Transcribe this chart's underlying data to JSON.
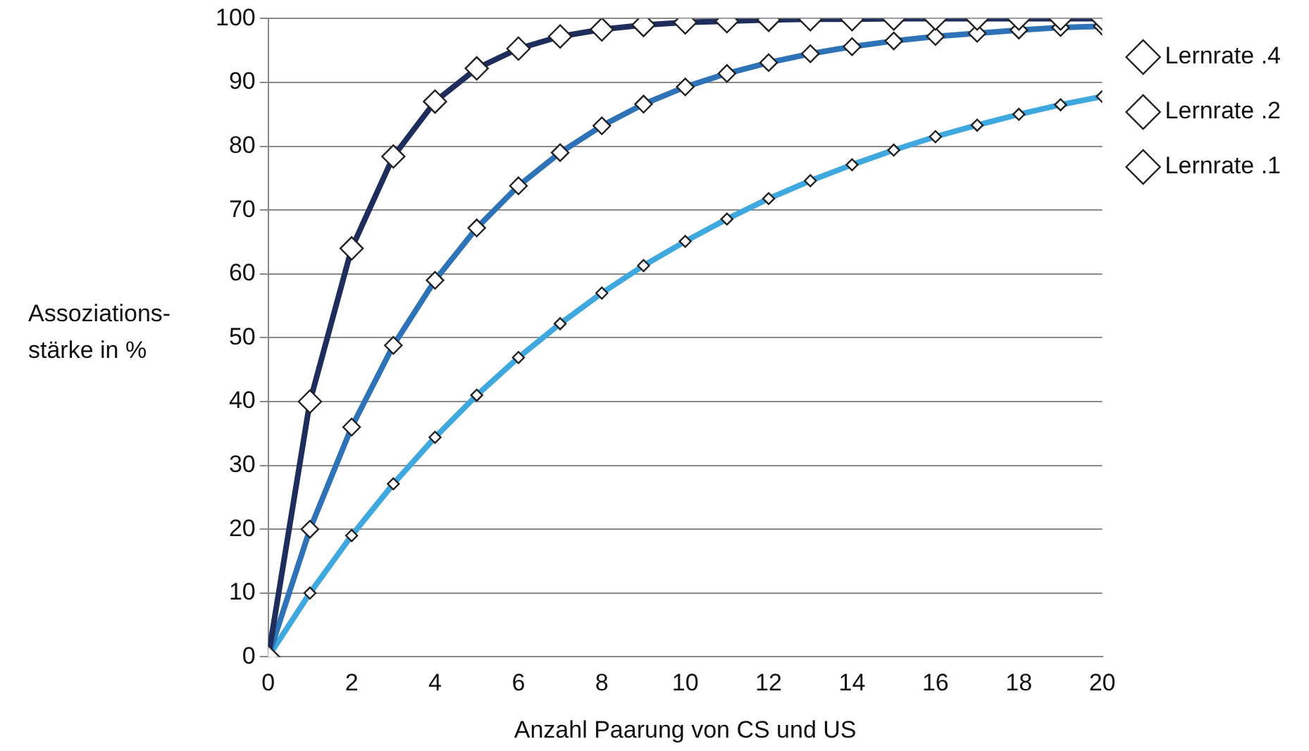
{
  "chart_data": {
    "type": "line",
    "xlabel": "Anzahl Paarung von CS und US",
    "ylabel": "Assoziations-\nstärke in %",
    "x": [
      0,
      1,
      2,
      3,
      4,
      5,
      6,
      7,
      8,
      9,
      10,
      11,
      12,
      13,
      14,
      15,
      16,
      17,
      18,
      19,
      20
    ],
    "series": [
      {
        "name": "Lernrate .4",
        "color": "#1f2d5c",
        "values": [
          0,
          40,
          64,
          78.4,
          87,
          92.2,
          95.3,
          97.2,
          98.3,
          99,
          99.4,
          99.6,
          99.8,
          99.9,
          99.9,
          100,
          100,
          100,
          100,
          100,
          100
        ]
      },
      {
        "name": "Lernrate .2",
        "color": "#2e73b8",
        "values": [
          0,
          20,
          36,
          48.8,
          59,
          67.2,
          73.8,
          79,
          83.2,
          86.6,
          89.3,
          91.4,
          93.1,
          94.5,
          95.6,
          96.5,
          97.2,
          97.7,
          98.2,
          98.6,
          98.8
        ]
      },
      {
        "name": "Lernrate .1",
        "color": "#3ea8df",
        "values": [
          0,
          10,
          19,
          27.1,
          34.4,
          41,
          46.9,
          52.2,
          57,
          61.3,
          65.1,
          68.6,
          71.8,
          74.6,
          77.1,
          79.4,
          81.5,
          83.3,
          85,
          86.5,
          87.8
        ]
      }
    ],
    "xlim": [
      0,
      20
    ],
    "xticks": [
      0,
      2,
      4,
      6,
      8,
      10,
      12,
      14,
      16,
      18,
      20
    ],
    "ylim": [
      0,
      100
    ],
    "yticks": [
      0,
      10,
      20,
      30,
      40,
      50,
      60,
      70,
      80,
      90,
      100
    ],
    "grid": "y",
    "legend": "top right",
    "marker": "diamond",
    "line_style": "solid"
  }
}
